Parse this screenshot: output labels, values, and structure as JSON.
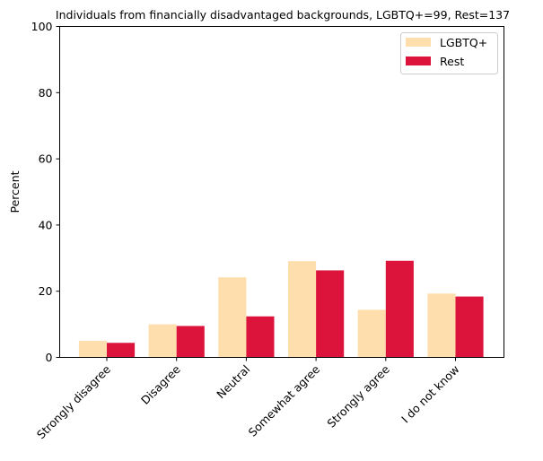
{
  "chart_data": {
    "type": "bar",
    "title": "Individuals from financially disadvantaged backgrounds, LGBTQ+=99, Rest=137",
    "xlabel": "",
    "ylabel": "Percent",
    "ylim": [
      0,
      100
    ],
    "yticks": [
      0,
      20,
      40,
      60,
      80,
      100
    ],
    "categories": [
      "Strongly disagree",
      "Disagree",
      "Neutral",
      "Somewhat agree",
      "Strongly agree",
      "I do not know"
    ],
    "series": [
      {
        "name": "LGBTQ+",
        "color": "#FFDEAD",
        "values": [
          5.0,
          10.0,
          24.2,
          29.1,
          14.4,
          19.3
        ]
      },
      {
        "name": "Rest",
        "color": "#DC143C",
        "values": [
          4.4,
          9.5,
          12.4,
          26.3,
          29.2,
          18.4
        ]
      }
    ],
    "legend": "top-right",
    "grid": false
  }
}
